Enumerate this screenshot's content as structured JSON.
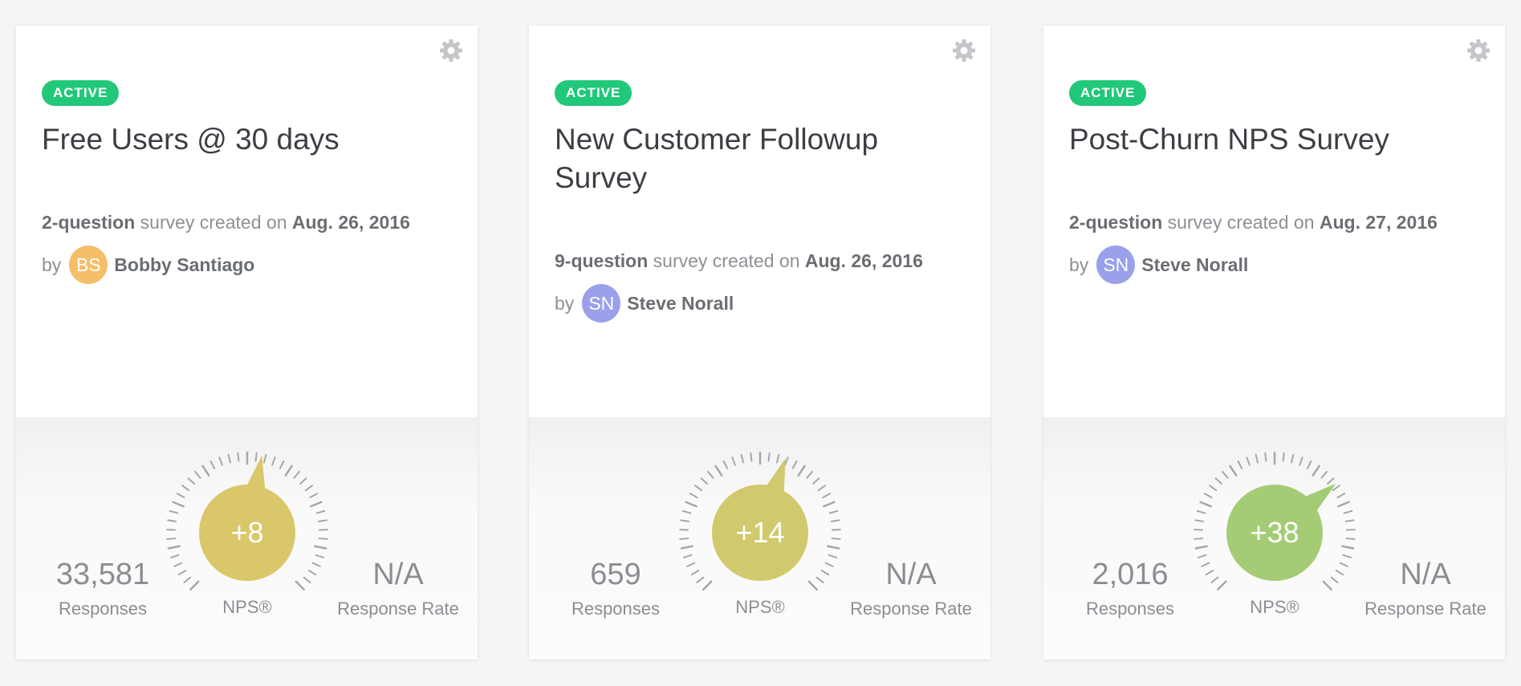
{
  "cards": [
    {
      "status": "ACTIVE",
      "title": "Free Users @ 30 days",
      "question_count": "2-question",
      "created_text": " survey created on ",
      "date": "Aug. 26, 2016",
      "by": "by",
      "author_initials": "BS",
      "author": "Bobby Santiago",
      "avatar_color": "#f5be6a",
      "responses": "33,581",
      "responses_label": "Responses",
      "nps": "+8",
      "nps_value": 8,
      "nps_label": "NPS®",
      "nps_color": "#d9c76a",
      "response_rate": "N/A",
      "response_rate_label": "Response Rate"
    },
    {
      "status": "ACTIVE",
      "title": "New Customer Followup Survey",
      "question_count": "9-question",
      "created_text": " survey created on ",
      "date": "Aug. 26, 2016",
      "by": "by",
      "author_initials": "SN",
      "author": "Steve Norall",
      "avatar_color": "#9aa0ea",
      "responses": "659",
      "responses_label": "Responses",
      "nps": "+14",
      "nps_value": 14,
      "nps_label": "NPS®",
      "nps_color": "#d1c96d",
      "response_rate": "N/A",
      "response_rate_label": "Response Rate"
    },
    {
      "status": "ACTIVE",
      "title": "Post-Churn NPS Survey",
      "question_count": "2-question",
      "created_text": " survey created on ",
      "date": "Aug. 27, 2016",
      "by": "by",
      "author_initials": "SN",
      "author": "Steve Norall",
      "avatar_color": "#9aa0ea",
      "responses": "2,016",
      "responses_label": "Responses",
      "nps": "+38",
      "nps_value": 38,
      "nps_label": "NPS®",
      "nps_color": "#a4cc75",
      "response_rate": "N/A",
      "response_rate_label": "Response Rate"
    }
  ],
  "icons": {
    "settings": "gear-icon"
  },
  "colors": {
    "badge": "#21c87a",
    "tick": "#a5a7aa",
    "background": "#f4f5f7"
  }
}
